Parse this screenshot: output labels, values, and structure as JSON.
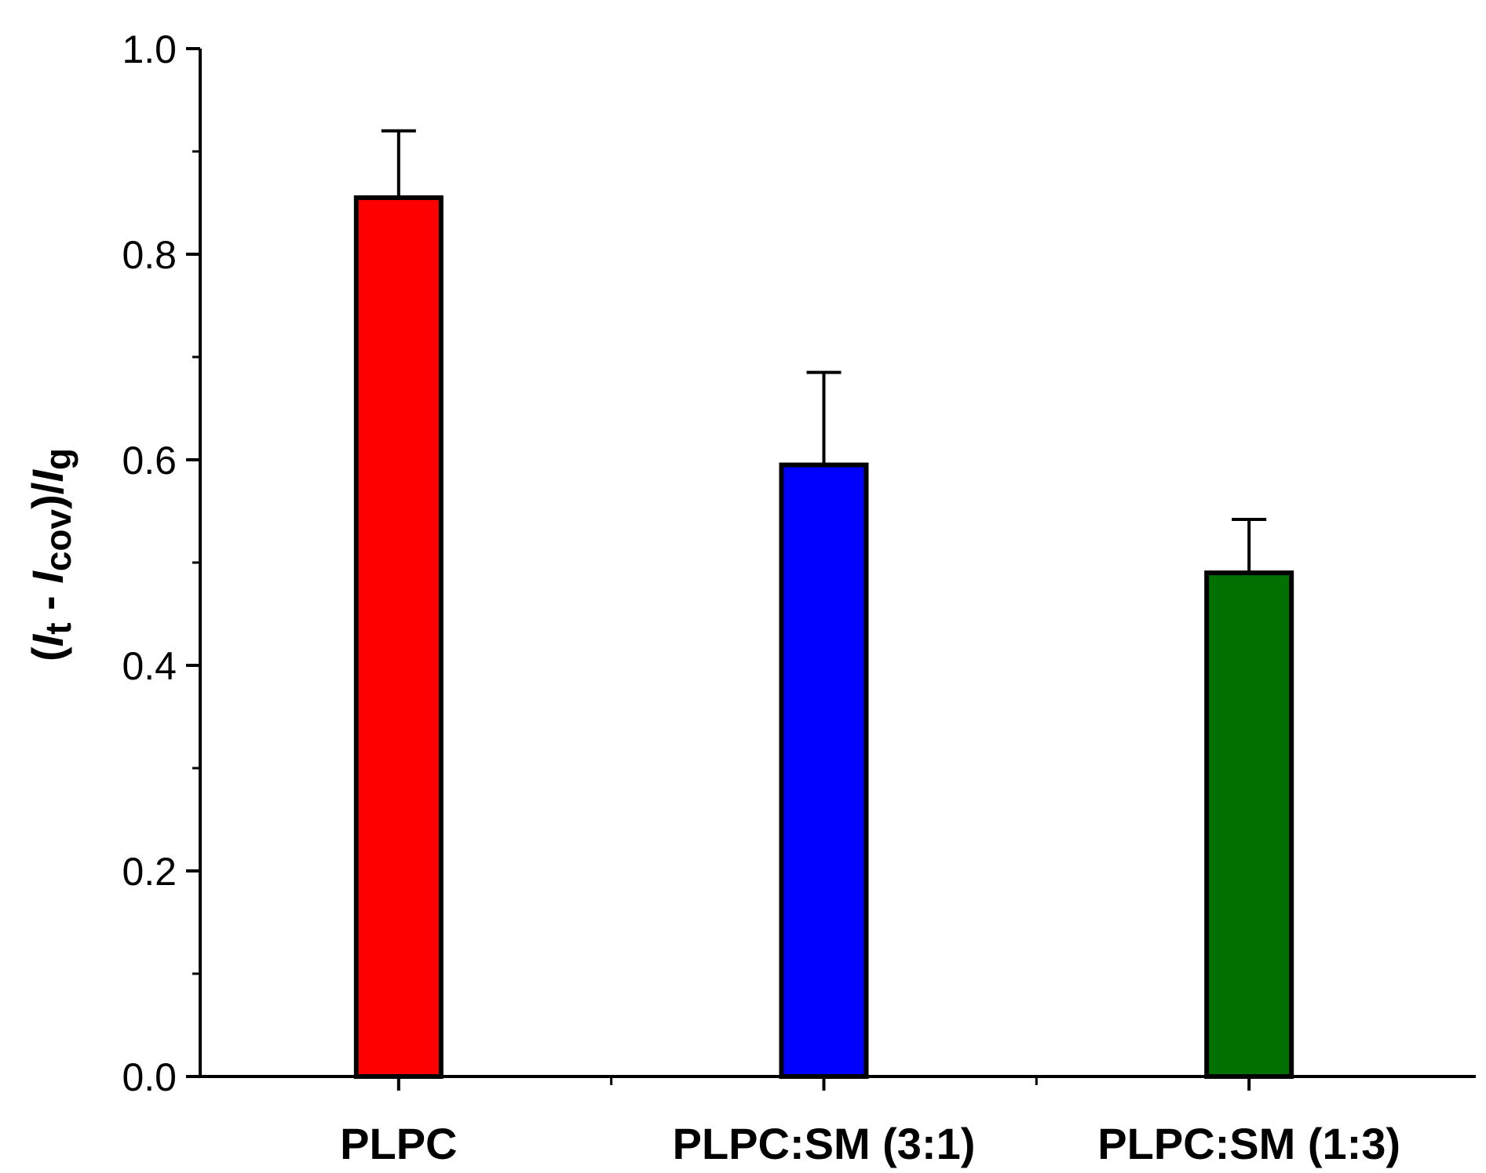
{
  "chart_data": {
    "type": "bar",
    "title": "",
    "xlabel": "",
    "ylabel": {
      "parts": [
        {
          "text": "(",
          "italic": false,
          "sub": false
        },
        {
          "text": "I",
          "italic": true,
          "sub": false
        },
        {
          "text": "t",
          "italic": false,
          "sub": true
        },
        {
          "text": " - ",
          "italic": false,
          "sub": false
        },
        {
          "text": "I",
          "italic": true,
          "sub": false
        },
        {
          "text": "cov",
          "italic": false,
          "sub": true
        },
        {
          "text": ")/",
          "italic": false,
          "sub": false
        },
        {
          "text": "I",
          "italic": true,
          "sub": false
        },
        {
          "text": "g",
          "italic": false,
          "sub": true
        }
      ]
    },
    "categories": [
      "PLPC",
      "PLPC:SM (3:1)",
      "PLPC:SM (1:3)"
    ],
    "values": [
      0.855,
      0.595,
      0.49
    ],
    "errors": [
      0.065,
      0.09,
      0.052
    ],
    "colors": [
      "#ff0000",
      "#0000ff",
      "#007000"
    ],
    "ylim": [
      0,
      1.0
    ],
    "yticks": [
      0.0,
      0.2,
      0.4,
      0.6,
      0.8,
      1.0
    ],
    "ytick_labels": [
      "0.0",
      "0.2",
      "0.4",
      "0.6",
      "0.8",
      "1.0"
    ],
    "grid": false,
    "legend": "none"
  }
}
